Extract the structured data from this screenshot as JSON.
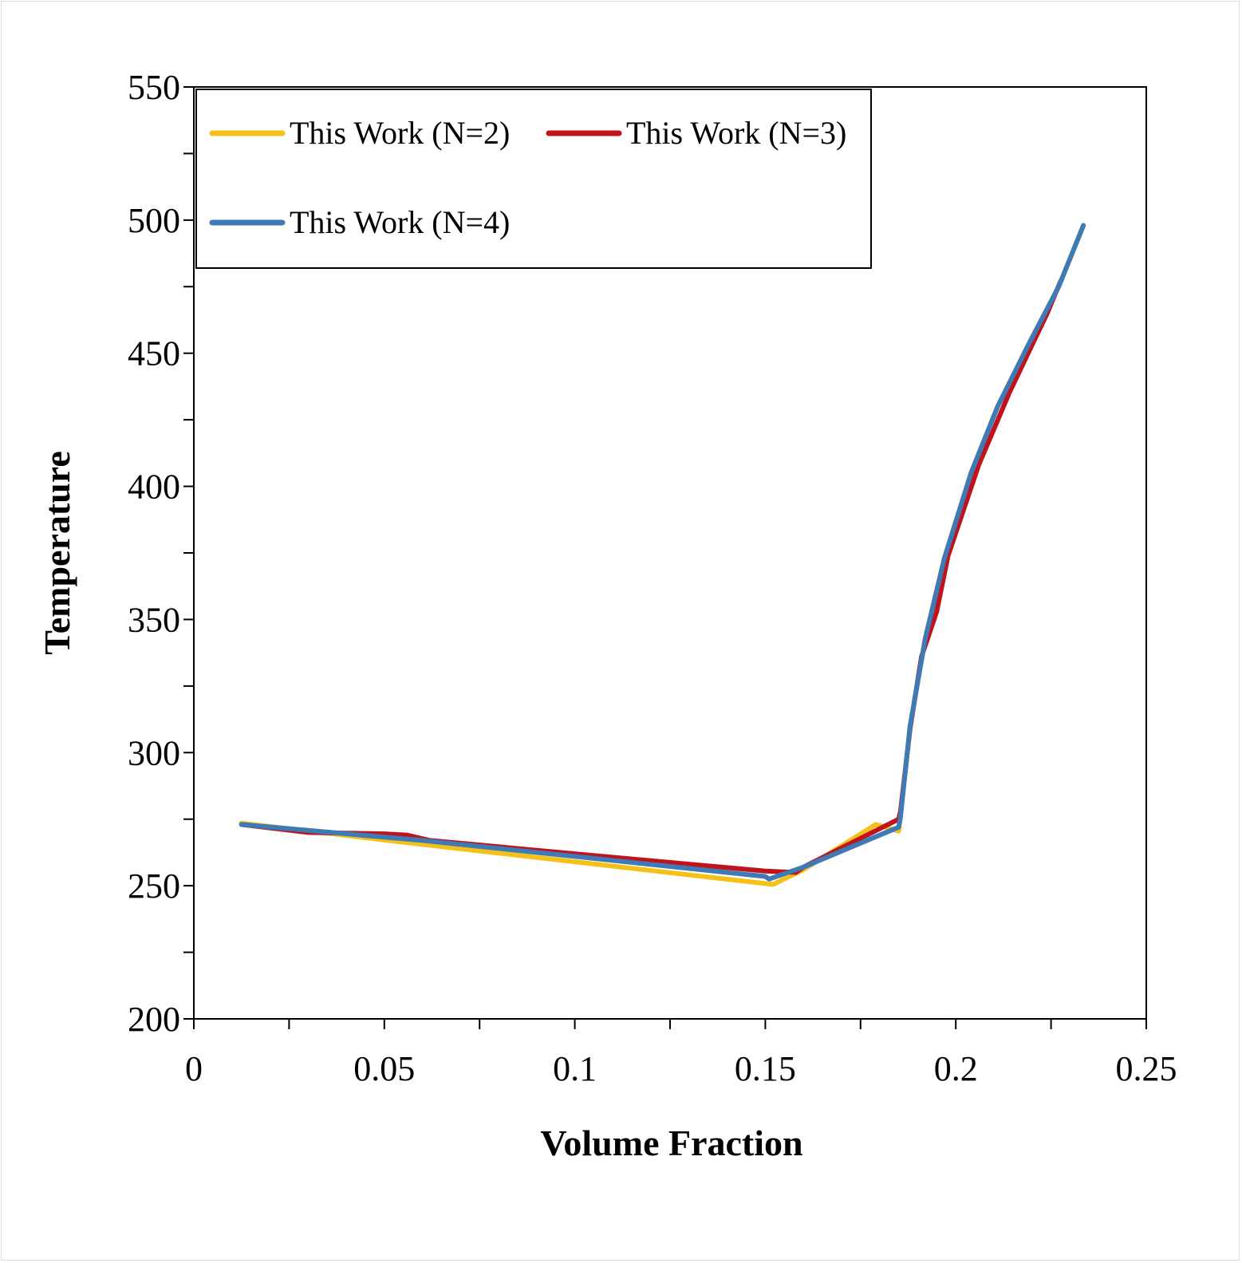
{
  "chart_data": {
    "type": "line",
    "xlabel": "Volume Fraction",
    "ylabel": "Temperature",
    "xlim": [
      0,
      0.25
    ],
    "ylim": [
      200,
      550
    ],
    "xticks": [
      "0",
      "0.05",
      "0.1",
      "0.15",
      "0.2",
      "0.25"
    ],
    "yticks": [
      "200",
      "250",
      "300",
      "350",
      "400",
      "450",
      "500",
      "550"
    ],
    "legend_position": "top-left",
    "grid": false,
    "series": [
      {
        "name": "This Work (N=2)",
        "color": "#F5C118",
        "points": [
          [
            0.0125,
            273.5
          ],
          [
            0.06,
            265.5
          ],
          [
            0.1,
            259
          ],
          [
            0.152,
            250.5
          ],
          [
            0.16,
            256
          ],
          [
            0.179,
            273
          ],
          [
            0.185,
            270.5
          ],
          [
            0.1855,
            276
          ],
          [
            0.188,
            310
          ],
          [
            0.192,
            343
          ],
          [
            0.197,
            373
          ],
          [
            0.204,
            405
          ],
          [
            0.211,
            430
          ],
          [
            0.219,
            453
          ],
          [
            0.227,
            475
          ],
          [
            0.2335,
            498
          ]
        ]
      },
      {
        "name": "This Work (N=3)",
        "color": "#C0141C",
        "points": [
          [
            0.0125,
            273
          ],
          [
            0.03,
            270
          ],
          [
            0.05,
            269.5
          ],
          [
            0.056,
            269
          ],
          [
            0.062,
            267
          ],
          [
            0.1,
            262
          ],
          [
            0.15,
            255.5
          ],
          [
            0.158,
            255
          ],
          [
            0.16,
            257
          ],
          [
            0.185,
            275
          ],
          [
            0.1855,
            278
          ],
          [
            0.188,
            309
          ],
          [
            0.191,
            336
          ],
          [
            0.195,
            353
          ],
          [
            0.198,
            374
          ],
          [
            0.206,
            408
          ],
          [
            0.214,
            435
          ],
          [
            0.219,
            450
          ],
          [
            0.224,
            465
          ],
          [
            0.2275,
            477
          ]
        ]
      },
      {
        "name": "This Work (N=4)",
        "color": "#3E7AB5",
        "points": [
          [
            0.0125,
            273
          ],
          [
            0.06,
            267
          ],
          [
            0.1,
            261
          ],
          [
            0.15,
            253.5
          ],
          [
            0.151,
            252.5
          ],
          [
            0.155,
            254.5
          ],
          [
            0.16,
            257
          ],
          [
            0.185,
            272
          ],
          [
            0.1855,
            276
          ],
          [
            0.188,
            310
          ],
          [
            0.192,
            343
          ],
          [
            0.197,
            373
          ],
          [
            0.204,
            405
          ],
          [
            0.211,
            430
          ],
          [
            0.219,
            453
          ],
          [
            0.227,
            475
          ],
          [
            0.2335,
            498
          ]
        ]
      }
    ]
  }
}
